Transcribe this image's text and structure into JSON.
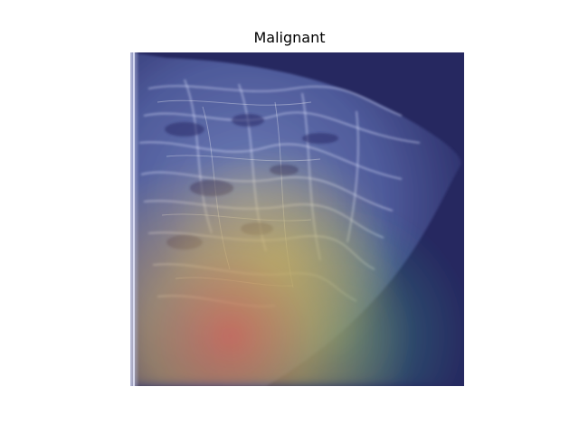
{
  "figure": {
    "title": "Malignant"
  },
  "image": {
    "subject": "mammogram-with-heatmap-overlay",
    "colors": {
      "background_overlay": "#262860",
      "tissue_highlight": "#d8dcff",
      "heat_hot": "#c86a5a",
      "heat_warm": "#d8c860",
      "heat_cool": "#3aa6a0"
    }
  }
}
